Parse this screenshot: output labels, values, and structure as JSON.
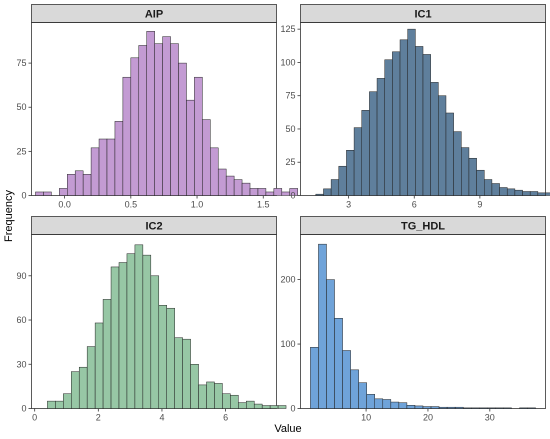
{
  "chart_data": {
    "type": "bar",
    "xlabel": "Value",
    "ylabel": "Frequency",
    "grid": false,
    "legend": "none",
    "panels": [
      {
        "title": "AIP",
        "color": "#c39bd3",
        "xlim": [
          -0.25,
          1.6
        ],
        "ylim": [
          0,
          98
        ],
        "xticks": [
          0.0,
          0.5,
          1.0,
          1.5
        ],
        "xtick_labels": [
          "0.0",
          "0.5",
          "1.0",
          "1.5"
        ],
        "yticks": [
          0,
          25,
          50,
          75
        ],
        "bin_width": 0.06,
        "bin_start": -0.22,
        "values": [
          2,
          2,
          0,
          4,
          12,
          14,
          12,
          27,
          32,
          32,
          42,
          67,
          78,
          85,
          93,
          86,
          90,
          86,
          75,
          54,
          67,
          43,
          27,
          15,
          11,
          9,
          7,
          4,
          4,
          2,
          4,
          2,
          4
        ]
      },
      {
        "title": "IC1",
        "color": "#5f7f9c",
        "xlim": [
          0.8,
          12.0
        ],
        "ylim": [
          0,
          130
        ],
        "xticks": [
          3,
          6,
          9
        ],
        "xtick_labels": [
          "3",
          "6",
          "9"
        ],
        "yticks": [
          0,
          25,
          50,
          75,
          100,
          125
        ],
        "bin_width": 0.35,
        "bin_start": 1.5,
        "values": [
          1,
          5,
          12,
          22,
          34,
          51,
          64,
          78,
          88,
          102,
          108,
          117,
          125,
          112,
          106,
          85,
          75,
          62,
          48,
          36,
          28,
          19,
          12,
          9,
          6,
          5,
          4,
          3,
          3,
          2,
          2,
          1,
          1,
          1,
          1,
          0,
          0,
          1
        ]
      },
      {
        "title": "IC2",
        "color": "#97c7a5",
        "xlim": [
          -0.1,
          7.6
        ],
        "ylim": [
          0,
          118
        ],
        "xticks": [
          0,
          2,
          4,
          6
        ],
        "xtick_labels": [
          "0",
          "2",
          "4",
          "6"
        ],
        "yticks": [
          0,
          30,
          60,
          90
        ],
        "bin_width": 0.25,
        "bin_start": 0.4,
        "values": [
          5,
          5,
          10,
          25,
          28,
          42,
          58,
          74,
          96,
          99,
          105,
          111,
          104,
          90,
          70,
          68,
          48,
          47,
          30,
          16,
          18,
          17,
          10,
          9,
          4,
          5,
          3,
          2,
          2,
          2
        ]
      },
      {
        "title": "TG_HDL",
        "color": "#6fa3d9",
        "xlim": [
          -0.6,
          39.0
        ],
        "ylim": [
          0,
          270
        ],
        "xticks": [
          10,
          20,
          30
        ],
        "xtick_labels": [
          "10",
          "20",
          "30"
        ],
        "yticks": [
          0,
          100,
          200
        ],
        "bin_width": 1.3,
        "bin_start": 1.0,
        "values": [
          95,
          255,
          200,
          140,
          90,
          60,
          40,
          22,
          15,
          14,
          10,
          9,
          5,
          4,
          3,
          3,
          2,
          2,
          2,
          1,
          1,
          1,
          1,
          1,
          1,
          0,
          1,
          1
        ]
      }
    ]
  }
}
